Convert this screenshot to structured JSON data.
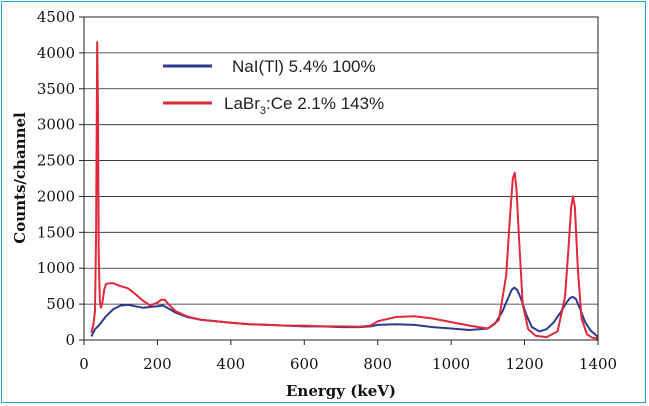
{
  "chart_data": {
    "type": "line",
    "xlabel": "Energy (keV)",
    "ylabel": "Counts/channel",
    "xlim": [
      0,
      1400
    ],
    "ylim": [
      0,
      4500
    ],
    "xticks": [
      0,
      200,
      400,
      600,
      800,
      1000,
      1200,
      1400
    ],
    "yticks": [
      0,
      500,
      1000,
      1500,
      2000,
      2500,
      3000,
      3500,
      4000,
      4500
    ],
    "grid": "horizontal",
    "legend_position": "top-right",
    "colors": {
      "nai": "#2b3b8f",
      "labr": "#e0283a"
    },
    "legend": {
      "nai": {
        "label": "NaI(Tl) 5.4% 100%"
      },
      "labr": {
        "pre": "LaBr",
        "sub": "3",
        "post": ":Ce 2.1% 143%"
      }
    },
    "series": [
      {
        "key": "nai",
        "x": [
          20,
          30,
          40,
          60,
          80,
          100,
          120,
          140,
          160,
          180,
          200,
          215,
          230,
          250,
          280,
          320,
          360,
          400,
          450,
          500,
          550,
          600,
          650,
          700,
          750,
          780,
          800,
          850,
          900,
          950,
          1000,
          1050,
          1100,
          1120,
          1140,
          1155,
          1165,
          1172,
          1180,
          1190,
          1205,
          1220,
          1240,
          1260,
          1280,
          1300,
          1315,
          1325,
          1332,
          1340,
          1350,
          1365,
          1380,
          1392,
          1400
        ],
        "y": [
          50,
          150,
          200,
          330,
          430,
          480,
          490,
          470,
          450,
          460,
          470,
          480,
          440,
          380,
          320,
          280,
          260,
          240,
          220,
          210,
          200,
          190,
          190,
          180,
          180,
          190,
          210,
          220,
          210,
          180,
          160,
          140,
          160,
          230,
          400,
          580,
          700,
          730,
          700,
          580,
          350,
          180,
          120,
          150,
          250,
          400,
          530,
          590,
          600,
          570,
          450,
          250,
          130,
          80,
          40
        ]
      },
      {
        "key": "labr",
        "x": [
          20,
          25,
          30,
          33,
          36,
          38,
          40,
          43,
          46,
          50,
          55,
          60,
          70,
          80,
          100,
          120,
          140,
          160,
          180,
          200,
          210,
          220,
          230,
          250,
          280,
          320,
          360,
          400,
          450,
          500,
          550,
          600,
          650,
          700,
          750,
          780,
          800,
          850,
          900,
          950,
          1000,
          1050,
          1100,
          1130,
          1150,
          1160,
          1168,
          1173,
          1178,
          1185,
          1195,
          1210,
          1230,
          1260,
          1290,
          1310,
          1320,
          1327,
          1332,
          1337,
          1345,
          1355,
          1370,
          1385,
          1400
        ],
        "y": [
          100,
          200,
          400,
          1500,
          4150,
          3200,
          1200,
          550,
          450,
          520,
          700,
          780,
          790,
          790,
          750,
          720,
          640,
          550,
          480,
          520,
          560,
          560,
          500,
          400,
          330,
          280,
          260,
          240,
          220,
          210,
          200,
          200,
          190,
          190,
          185,
          200,
          260,
          320,
          330,
          300,
          250,
          200,
          160,
          280,
          900,
          1700,
          2250,
          2330,
          2100,
          1400,
          500,
          150,
          60,
          40,
          120,
          600,
          1300,
          1850,
          2000,
          1850,
          1000,
          300,
          80,
          30,
          20
        ]
      }
    ]
  }
}
